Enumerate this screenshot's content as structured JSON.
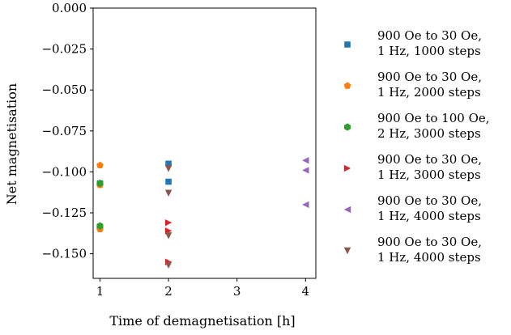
{
  "chart_data": {
    "type": "scatter",
    "title": "",
    "xlabel": "Time of demagnetisation [h]",
    "ylabel": "Net magnetisation",
    "xlim": [
      0.9,
      4.15
    ],
    "ylim": [
      -0.165,
      0.0
    ],
    "xticks": [
      1,
      2,
      3,
      4
    ],
    "yticks": [
      0.0,
      -0.025,
      -0.05,
      -0.075,
      -0.1,
      -0.125,
      -0.15
    ],
    "ytick_labels": [
      "0.000",
      "−0.025",
      "−0.050",
      "−0.075",
      "−0.100",
      "−0.125",
      "−0.150"
    ],
    "grid": false,
    "legend_position": "right, outside",
    "series": [
      {
        "name": "900 Oe to 30 Oe, 1 Hz, 1000 steps",
        "label_lines": [
          "900 Oe to 30 Oe,",
          "1 Hz, 1000 steps"
        ],
        "color": "#1f77b4",
        "marker": "square",
        "points": [
          [
            1,
            -0.107
          ],
          [
            1,
            -0.134
          ],
          [
            2,
            -0.095
          ],
          [
            2,
            -0.106
          ]
        ]
      },
      {
        "name": "900 Oe to 30 Oe, 1 Hz, 2000 steps",
        "label_lines": [
          "900 Oe to 30 Oe,",
          "1 Hz, 2000 steps"
        ],
        "color": "#ff7f0e",
        "marker": "pentagon",
        "points": [
          [
            1,
            -0.096
          ],
          [
            1,
            -0.108
          ],
          [
            1,
            -0.135
          ]
        ]
      },
      {
        "name": "900 Oe to 100 Oe, 2 Hz, 3000 steps",
        "label_lines": [
          "900 Oe to 100 Oe,",
          "2 Hz, 3000 steps"
        ],
        "color": "#2ca02c",
        "marker": "hexagon",
        "points": [
          [
            1,
            -0.107
          ],
          [
            1,
            -0.133
          ]
        ]
      },
      {
        "name": "900 Oe to 30 Oe, 1 Hz, 3000 steps",
        "label_lines": [
          "900 Oe to 30 Oe,",
          "1 Hz, 3000 steps"
        ],
        "color": "#d62728",
        "marker": "triangle-right",
        "points": [
          [
            2,
            -0.131
          ],
          [
            2,
            -0.136
          ],
          [
            2,
            -0.155
          ]
        ]
      },
      {
        "name": "900 Oe to 30 Oe, 1 Hz, 4000 steps",
        "label_lines": [
          "900 Oe to 30 Oe,",
          "1 Hz, 4000 steps"
        ],
        "color": "#9467bd",
        "marker": "triangle-left",
        "points": [
          [
            4,
            -0.093
          ],
          [
            4,
            -0.099
          ],
          [
            4,
            -0.12
          ]
        ]
      },
      {
        "name": "900 Oe to 30 Oe, 1 Hz, 4000 steps",
        "label_lines": [
          "900 Oe to 30 Oe,",
          "1 Hz, 4000 steps"
        ],
        "color": "#8c564b",
        "marker": "triangle-down",
        "points": [
          [
            2,
            -0.098
          ],
          [
            2,
            -0.113
          ],
          [
            2,
            -0.139
          ],
          [
            2,
            -0.157
          ]
        ]
      }
    ]
  }
}
